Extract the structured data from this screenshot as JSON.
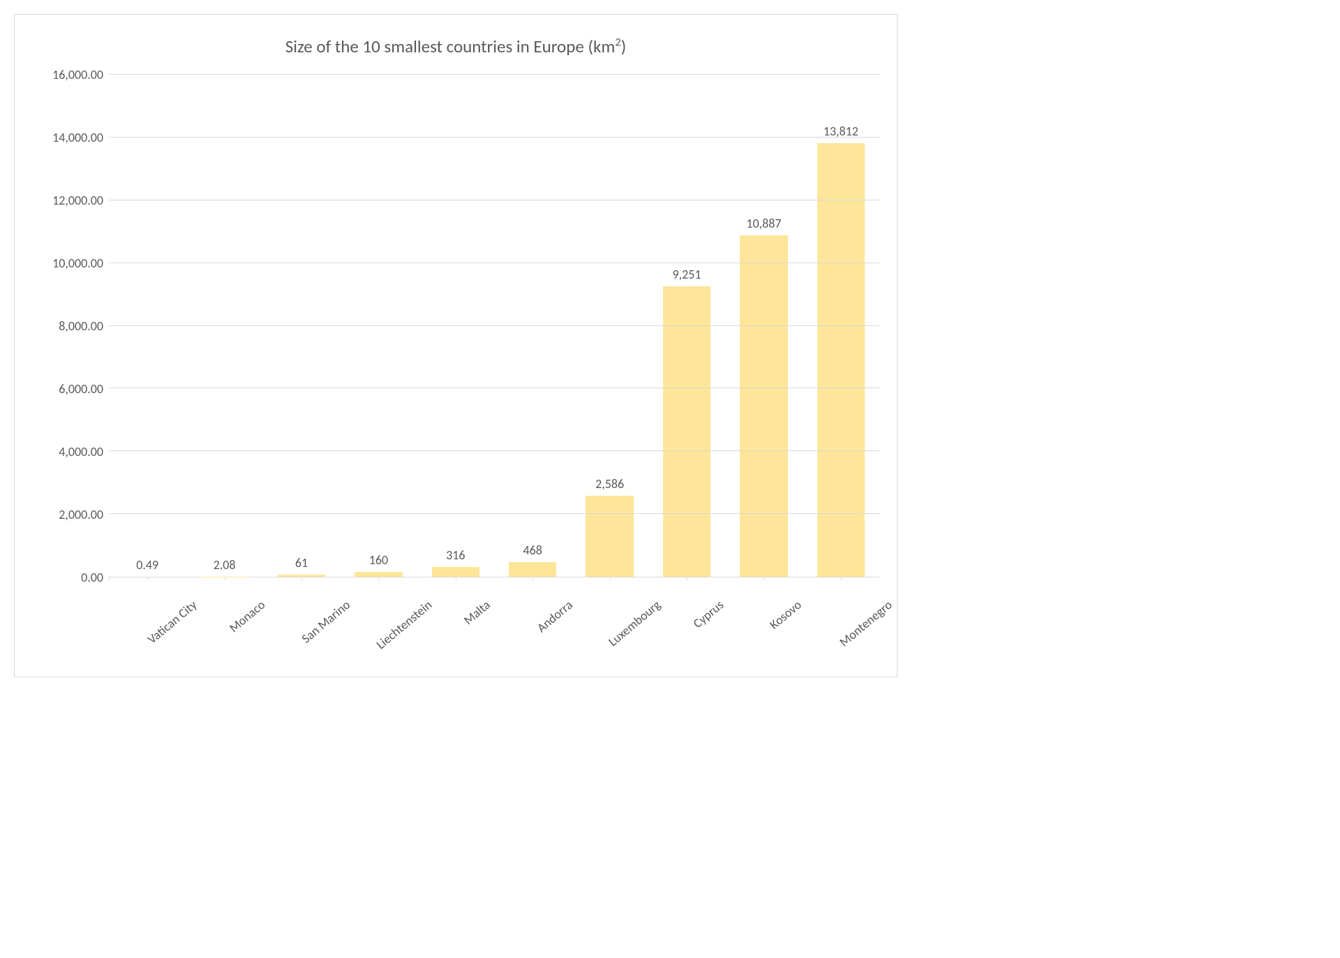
{
  "chart": {
    "type": "bar",
    "title_prefix": "Size of the 10 smallest countries in Europe (km",
    "title_sup": "2",
    "title_suffix": ")",
    "title_fontsize": 25,
    "title_color": "#595959",
    "categories": [
      "Vatican City",
      "Monaco",
      "San Marino",
      "Liechtenstein",
      "Malta",
      "Andorra",
      "Luxembourg",
      "Cyprus",
      "Kosovo",
      "Montenegro"
    ],
    "values": [
      0.49,
      2.08,
      61,
      160,
      316,
      468,
      2586,
      9251,
      10887,
      13812
    ],
    "value_labels": [
      "0.49",
      "2.08",
      "61",
      "160",
      "316",
      "468",
      "2,586",
      "9,251",
      "10,887",
      "13,812"
    ],
    "bar_color": "#fde699",
    "ylim": [
      0,
      16000
    ],
    "ytick_step": 2000,
    "ytick_labels": [
      "0.00",
      "2,000.00",
      "4,000.00",
      "6,000.00",
      "8,000.00",
      "10,000.00",
      "12,000.00",
      "14,000.00",
      "16,000.00"
    ],
    "grid_color": "#d9d9d9",
    "background_color": "#ffffff",
    "axis_label_color": "#595959",
    "axis_label_fontsize": 18,
    "data_label_fontsize": 18,
    "bar_width": 0.62,
    "x_label_rotation": -40,
    "border_color": "#d9d9d9"
  }
}
